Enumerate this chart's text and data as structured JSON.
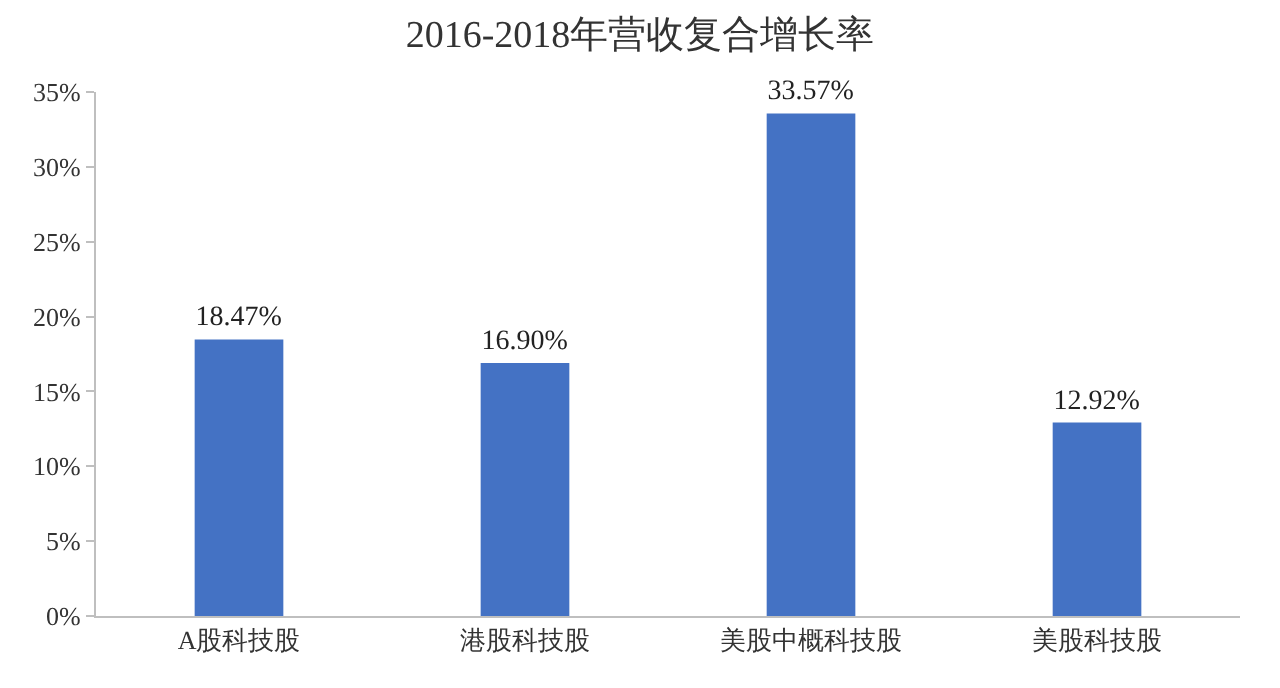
{
  "chart_data": {
    "type": "bar",
    "title": "2016-2018年营收复合增长率",
    "categories": [
      "A股科技股",
      "港股科技股",
      "美股中概科技股",
      "美股科技股"
    ],
    "values": [
      18.47,
      16.9,
      33.57,
      12.92
    ],
    "value_labels": [
      "18.47%",
      "16.90%",
      "33.57%",
      "12.92%"
    ],
    "color": "#4472c4",
    "ylim": [
      0,
      35
    ],
    "yticks": [
      {
        "value": 0,
        "label": "0%"
      },
      {
        "value": 5,
        "label": "5%"
      },
      {
        "value": 10,
        "label": "10%"
      },
      {
        "value": 15,
        "label": "15%"
      },
      {
        "value": 20,
        "label": "20%"
      },
      {
        "value": 25,
        "label": "25%"
      },
      {
        "value": 30,
        "label": "30%"
      },
      {
        "value": 35,
        "label": "35%"
      }
    ],
    "legend": false
  }
}
